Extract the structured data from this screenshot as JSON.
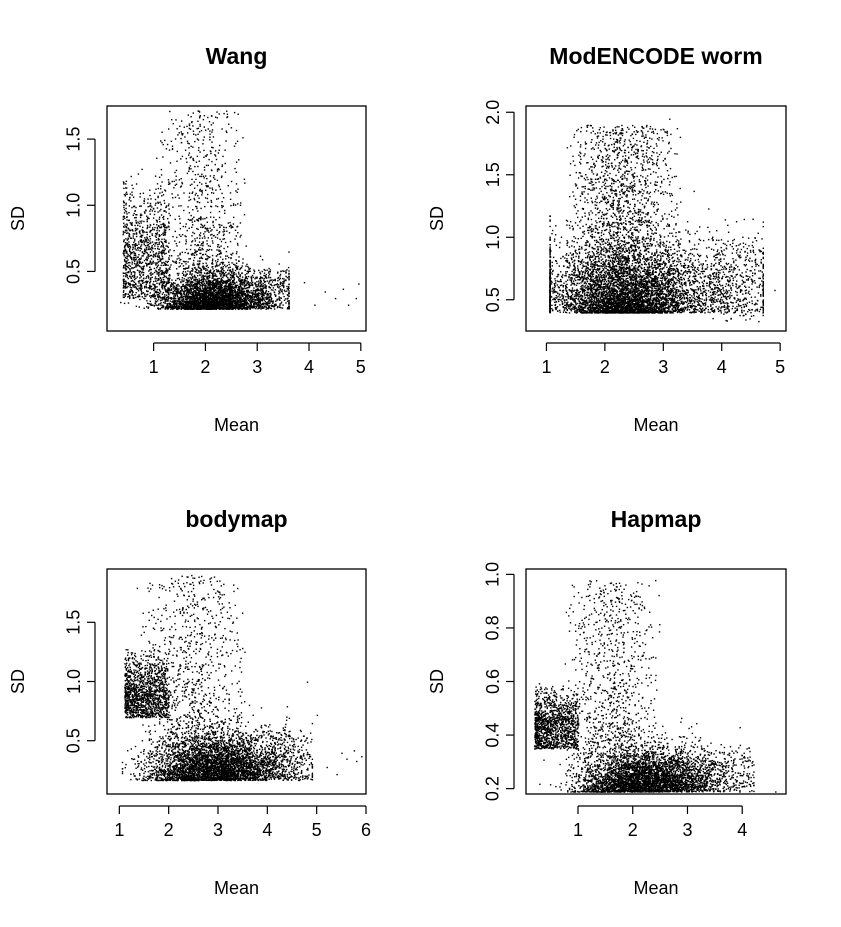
{
  "chart_data": [
    {
      "type": "scatter",
      "title": "Wang",
      "xlabel": "Mean",
      "ylabel": "SD",
      "xlim": [
        0.1,
        5.1
      ],
      "ylim": [
        0.05,
        1.75
      ],
      "xticks": [
        "1",
        "2",
        "3",
        "4",
        "5"
      ],
      "yticks": [
        "0.5",
        "1.0",
        "1.5"
      ],
      "point_cloud": {
        "n": 5200,
        "x_range": [
          0.35,
          3.6
        ],
        "y_floor": 0.22,
        "dense_core": {
          "x": [
            1.5,
            3.0
          ],
          "y": [
            0.22,
            0.45
          ]
        },
        "left_arm": {
          "x": [
            0.4,
            1.3
          ],
          "y": [
            0.3,
            1.3
          ]
        },
        "upper_spread": {
          "x": [
            1.0,
            2.8
          ],
          "y": [
            0.6,
            1.72
          ]
        }
      },
      "sparse_points": [
        [
          4.3,
          0.35
        ],
        [
          4.5,
          0.3
        ],
        [
          4.65,
          0.37
        ],
        [
          4.75,
          0.25
        ],
        [
          4.9,
          0.3
        ],
        [
          4.95,
          0.41
        ],
        [
          4.1,
          0.25
        ],
        [
          3.9,
          0.42
        ]
      ]
    },
    {
      "type": "scatter",
      "title": "ModENCODE worm",
      "xlabel": "Mean",
      "ylabel": "SD",
      "xlim": [
        0.65,
        5.1
      ],
      "ylim": [
        0.25,
        2.05
      ],
      "xticks": [
        "1",
        "2",
        "3",
        "4",
        "5"
      ],
      "yticks": [
        "0.5",
        "1.0",
        "1.5",
        "2.0"
      ],
      "point_cloud": {
        "n": 7000,
        "x_range": [
          1.05,
          4.7
        ],
        "y_floor": 0.33,
        "dense_core": {
          "x": [
            1.2,
            3.8
          ],
          "y": [
            0.4,
            0.85
          ]
        },
        "upper_spread": {
          "x": [
            1.3,
            3.3
          ],
          "y": [
            0.9,
            1.9
          ]
        }
      },
      "sparse_points": [
        [
          3.1,
          1.95
        ],
        [
          4.9,
          0.58
        ],
        [
          4.6,
          0.5
        ],
        [
          1.7,
          1.9
        ],
        [
          2.4,
          1.87
        ]
      ]
    },
    {
      "type": "scatter",
      "title": "bodymap",
      "xlabel": "Mean",
      "ylabel": "SD",
      "xlim": [
        0.75,
        6.0
      ],
      "ylim": [
        0.05,
        1.95
      ],
      "xticks": [
        "1",
        "2",
        "3",
        "4",
        "5",
        "6"
      ],
      "yticks": [
        "0.5",
        "1.0",
        "1.5"
      ],
      "point_cloud": {
        "n": 6000,
        "x_range": [
          1.05,
          4.9
        ],
        "y_floor": 0.17,
        "dense_core": {
          "x": [
            2.2,
            4.0
          ],
          "y": [
            0.17,
            0.5
          ]
        },
        "left_arm": {
          "x": [
            1.1,
            2.0
          ],
          "y": [
            0.7,
            1.3
          ]
        },
        "upper_spread": {
          "x": [
            1.3,
            3.6
          ],
          "y": [
            0.7,
            1.9
          ]
        }
      },
      "sparse_points": [
        [
          5.5,
          0.4
        ],
        [
          5.6,
          0.35
        ],
        [
          5.75,
          0.42
        ],
        [
          5.8,
          0.33
        ],
        [
          5.9,
          0.37
        ],
        [
          5.2,
          0.28
        ],
        [
          5.4,
          0.22
        ],
        [
          4.8,
          1.0
        ],
        [
          4.9,
          0.65
        ],
        [
          5.0,
          0.72
        ]
      ]
    },
    {
      "type": "scatter",
      "title": "Hapmap",
      "xlabel": "Mean",
      "ylabel": "SD",
      "xlim": [
        0.05,
        4.8
      ],
      "ylim": [
        0.18,
        1.02
      ],
      "xticks": [
        "1",
        "2",
        "3",
        "4"
      ],
      "yticks": [
        "0.2",
        "0.4",
        "0.6",
        "0.8",
        "1.0"
      ],
      "point_cloud": {
        "n": 6000,
        "x_range": [
          0.2,
          4.2
        ],
        "y_floor": 0.19,
        "dense_core": {
          "x": [
            1.6,
            3.2
          ],
          "y": [
            0.19,
            0.32
          ]
        },
        "left_arm": {
          "x": [
            0.2,
            1.0
          ],
          "y": [
            0.35,
            0.6
          ]
        },
        "upper_spread": {
          "x": [
            0.7,
            2.6
          ],
          "y": [
            0.45,
            0.98
          ]
        }
      },
      "sparse_points": [
        [
          4.6,
          0.19
        ],
        [
          4.1,
          0.25
        ],
        [
          4.0,
          0.3
        ],
        [
          3.95,
          0.43
        ],
        [
          4.0,
          0.21
        ],
        [
          1.6,
          0.97
        ]
      ]
    }
  ]
}
